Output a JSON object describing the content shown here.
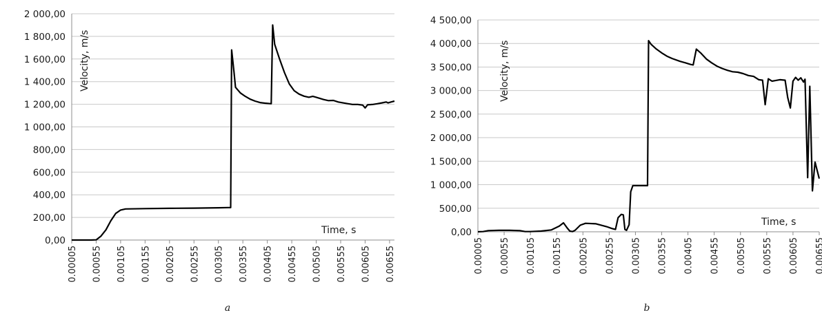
{
  "chart_data": [
    {
      "type": "line",
      "panel_label": "a",
      "xlabel": "Time, s",
      "ylabel": "Velocity, m/s",
      "ylim": [
        0,
        2000
      ],
      "y_ticks": [
        "0,00",
        "200,00",
        "400,00",
        "600,00",
        "800,00",
        "1 000,00",
        "1 200,00",
        "1 400,00",
        "1 600,00",
        "1 800,00",
        "2 000,00"
      ],
      "x_ticks": [
        "0.00005",
        "0.00055",
        "0.00105",
        "0.00155",
        "0.00205",
        "0.00255",
        "0.00305",
        "0.00355",
        "0.00405",
        "0.00455",
        "0.00505",
        "0.00555",
        "0.00605",
        "0.00655"
      ],
      "xlim": [
        5e-05,
        0.00665
      ],
      "grid": true,
      "series": [
        {
          "points": [
            [
              5e-05,
              0
            ],
            [
              0.00045,
              0
            ],
            [
              0.00055,
              2
            ],
            [
              0.00065,
              35
            ],
            [
              0.00075,
              90
            ],
            [
              0.00085,
              170
            ],
            [
              0.00095,
              235
            ],
            [
              0.00105,
              265
            ],
            [
              0.00115,
              275
            ],
            [
              0.00155,
              278
            ],
            [
              0.00205,
              280
            ],
            [
              0.00255,
              282
            ],
            [
              0.00305,
              285
            ],
            [
              0.00325,
              287
            ],
            [
              0.0033,
              287
            ],
            [
              0.00332,
              1680
            ],
            [
              0.00337,
              1480
            ],
            [
              0.0034,
              1350
            ],
            [
              0.0035,
              1300
            ],
            [
              0.0036,
              1270
            ],
            [
              0.0037,
              1245
            ],
            [
              0.0038,
              1228
            ],
            [
              0.0039,
              1215
            ],
            [
              0.004,
              1210
            ],
            [
              0.00413,
              1205
            ],
            [
              0.00416,
              1900
            ],
            [
              0.0042,
              1730
            ],
            [
              0.0043,
              1600
            ],
            [
              0.0044,
              1480
            ],
            [
              0.0045,
              1380
            ],
            [
              0.0046,
              1320
            ],
            [
              0.0047,
              1290
            ],
            [
              0.0048,
              1272
            ],
            [
              0.0049,
              1262
            ],
            [
              0.00498,
              1270
            ],
            [
              0.00505,
              1262
            ],
            [
              0.0052,
              1242
            ],
            [
              0.0053,
              1232
            ],
            [
              0.0054,
              1234
            ],
            [
              0.0055,
              1220
            ],
            [
              0.0057,
              1205
            ],
            [
              0.0058,
              1198
            ],
            [
              0.0059,
              1198
            ],
            [
              0.006,
              1193
            ],
            [
              0.00605,
              1168
            ],
            [
              0.0061,
              1195
            ],
            [
              0.0062,
              1198
            ],
            [
              0.0063,
              1205
            ],
            [
              0.0064,
              1213
            ],
            [
              0.00648,
              1220
            ],
            [
              0.00652,
              1212
            ],
            [
              0.00658,
              1220
            ],
            [
              0.00665,
              1228
            ]
          ]
        }
      ]
    },
    {
      "type": "line",
      "panel_label": "b",
      "xlabel": "Time, s",
      "ylabel": "Velocity, m/s",
      "ylim": [
        0,
        4500
      ],
      "y_ticks": [
        "0,00",
        "500,00",
        "1 000,00",
        "1 500,00",
        "2 000,00",
        "2 500,00",
        "3 000,00",
        "3 500,00",
        "4 000,00",
        "4 500,00"
      ],
      "x_ticks": [
        "0.00005",
        "0.00055",
        "0.00105",
        "0.00155",
        "0.00205",
        "0.00255",
        "0.00305",
        "0.00355",
        "0.00405",
        "0.00455",
        "0.00505",
        "0.00555",
        "0.00605",
        "0.00655"
      ],
      "xlim": [
        5e-05,
        0.00655
      ],
      "grid": true,
      "series": [
        {
          "points": [
            [
              5e-05,
              0
            ],
            [
              0.00015,
              5
            ],
            [
              0.00025,
              25
            ],
            [
              0.00045,
              30
            ],
            [
              0.00065,
              30
            ],
            [
              0.00085,
              25
            ],
            [
              0.00095,
              5
            ],
            [
              0.00105,
              5
            ],
            [
              0.00125,
              15
            ],
            [
              0.00145,
              40
            ],
            [
              0.0016,
              120
            ],
            [
              0.00168,
              190
            ],
            [
              0.00175,
              80
            ],
            [
              0.0018,
              15
            ],
            [
              0.00185,
              5
            ],
            [
              0.0019,
              30
            ],
            [
              0.002,
              140
            ],
            [
              0.0021,
              180
            ],
            [
              0.0023,
              170
            ],
            [
              0.0025,
              110
            ],
            [
              0.0026,
              70
            ],
            [
              0.00267,
              50
            ],
            [
              0.00272,
              300
            ],
            [
              0.00278,
              370
            ],
            [
              0.00282,
              360
            ],
            [
              0.00285,
              50
            ],
            [
              0.00288,
              30
            ],
            [
              0.00293,
              150
            ],
            [
              0.00296,
              850
            ],
            [
              0.003,
              980
            ],
            [
              0.0032,
              980
            ],
            [
              0.00328,
              980
            ],
            [
              0.0033,
              4060
            ],
            [
              0.00335,
              3980
            ],
            [
              0.00345,
              3880
            ],
            [
              0.00355,
              3800
            ],
            [
              0.00365,
              3730
            ],
            [
              0.00375,
              3680
            ],
            [
              0.0039,
              3620
            ],
            [
              0.004,
              3590
            ],
            [
              0.0041,
              3555
            ],
            [
              0.00415,
              3545
            ],
            [
              0.00421,
              3880
            ],
            [
              0.0043,
              3790
            ],
            [
              0.0044,
              3670
            ],
            [
              0.0045,
              3590
            ],
            [
              0.0046,
              3520
            ],
            [
              0.0047,
              3470
            ],
            [
              0.0048,
              3430
            ],
            [
              0.0049,
              3400
            ],
            [
              0.005,
              3390
            ],
            [
              0.0051,
              3360
            ],
            [
              0.0052,
              3320
            ],
            [
              0.0053,
              3300
            ],
            [
              0.0054,
              3230
            ],
            [
              0.00547,
              3220
            ],
            [
              0.00552,
              2700
            ],
            [
              0.00558,
              3250
            ],
            [
              0.00565,
              3200
            ],
            [
              0.0057,
              3210
            ],
            [
              0.0058,
              3230
            ],
            [
              0.0059,
              3220
            ],
            [
              0.00595,
              2850
            ],
            [
              0.006,
              2630
            ],
            [
              0.00605,
              3200
            ],
            [
              0.0061,
              3280
            ],
            [
              0.00615,
              3220
            ],
            [
              0.0062,
              3270
            ],
            [
              0.00625,
              3180
            ],
            [
              0.00628,
              3240
            ],
            [
              0.00633,
              1150
            ],
            [
              0.00637,
              3090
            ],
            [
              0.00642,
              870
            ],
            [
              0.00647,
              1480
            ],
            [
              0.00655,
              1130
            ]
          ]
        }
      ]
    }
  ]
}
